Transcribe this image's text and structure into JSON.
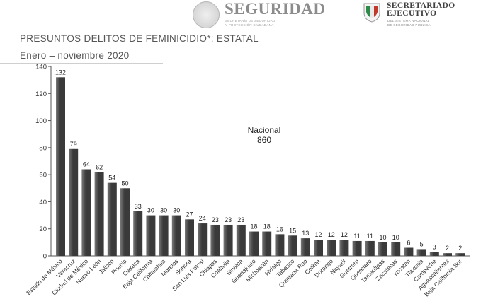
{
  "header": {
    "seguridad_logo": "SEGURIDAD",
    "seguridad_subtitle_1": "SECRETARÍA DE SEGURIDAD",
    "seguridad_subtitle_2": "Y PROTECCIÓN CIUDADANA",
    "se_logo_title_1": "SECRETARIADO",
    "se_logo_title_2": "EJECUTIVO",
    "se_logo_subtitle_1": "DEL SISTEMA NACIONAL",
    "se_logo_subtitle_2": "DE SEGURIDAD PÚBLICA",
    "colors": {
      "flag_green": "#2f8a4a",
      "flag_red": "#c0392b"
    }
  },
  "chart_data": {
    "type": "bar",
    "title": "PRESUNTOS DELITOS DE FEMINICIDIO*: ESTATAL",
    "subtitle": "Enero – noviembre 2020",
    "categories": [
      "Estado de México",
      "Veracruz",
      "Ciudad de México",
      "Nuevo León",
      "Jalisco",
      "Puebla",
      "Oaxaca",
      "Baja California",
      "Chihuahua",
      "Morelos",
      "Sonora",
      "San Luis Potosí",
      "Chiapas",
      "Coahuila",
      "Sinaloa",
      "Guanajuato",
      "Michoacán",
      "Hidalgo",
      "Tabasco",
      "Quintana Roo",
      "Colima",
      "Durango",
      "Nayarit",
      "Guerrero",
      "Querétaro",
      "Tamaulipas",
      "Zacatecas",
      "Yucatán",
      "Tlaxcala",
      "Campeche",
      "Aguascalientes",
      "Baja California Sur"
    ],
    "values": [
      132,
      79,
      64,
      62,
      54,
      50,
      33,
      30,
      30,
      30,
      27,
      24,
      23,
      23,
      23,
      18,
      18,
      16,
      15,
      13,
      12,
      12,
      12,
      11,
      11,
      10,
      10,
      6,
      5,
      3,
      2,
      2
    ],
    "ylim": [
      0,
      140
    ],
    "yticks": [
      0,
      20,
      40,
      60,
      80,
      100,
      120,
      140
    ],
    "data_labels": true,
    "annotation": {
      "label": "Nacional",
      "value": "860"
    },
    "grid": false,
    "colors": {
      "bar_dark": "#3a3a3a",
      "bar_light": "#777777"
    }
  }
}
